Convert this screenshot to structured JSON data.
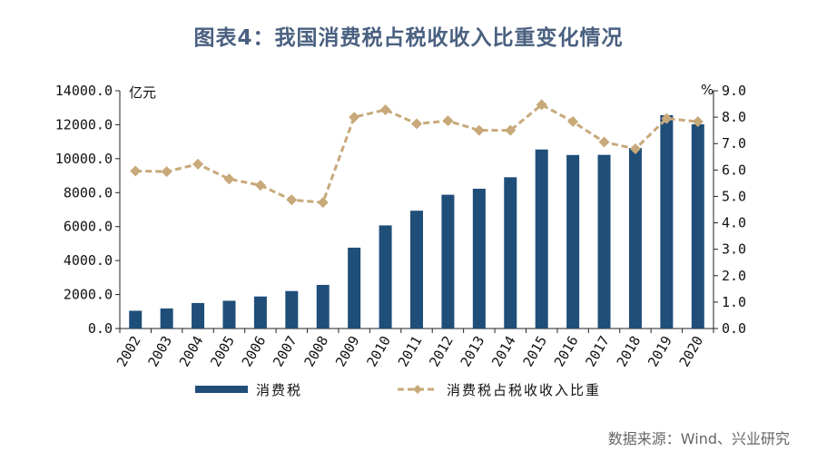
{
  "title": "图表4：我国消费税占税收收入比重变化情况",
  "source": "数据来源：Wind、兴业研究",
  "colors": {
    "bar": "#1f4e79",
    "line": "#c8a97a",
    "title": "#4a6080"
  },
  "chart_data": {
    "type": "bar",
    "categories": [
      "2002",
      "2003",
      "2004",
      "2005",
      "2006",
      "2007",
      "2008",
      "2009",
      "2010",
      "2011",
      "2012",
      "2013",
      "2014",
      "2015",
      "2016",
      "2017",
      "2018",
      "2019",
      "2020"
    ],
    "left_axis": {
      "unit": "亿元",
      "range": [
        0,
        14000
      ],
      "ticks": [
        "0.0",
        "2000.0",
        "4000.0",
        "6000.0",
        "8000.0",
        "10000.0",
        "12000.0",
        "14000.0"
      ]
    },
    "right_axis": {
      "unit": "%",
      "range": [
        0,
        9
      ],
      "ticks": [
        "0.0",
        "1.0",
        "2.0",
        "3.0",
        "4.0",
        "5.0",
        "6.0",
        "7.0",
        "8.0",
        "9.0"
      ]
    },
    "series": [
      {
        "name": "消费税",
        "type": "bar",
        "axis": "left",
        "values": [
          1046,
          1182,
          1502,
          1634,
          1886,
          2207,
          2568,
          4761,
          6072,
          6936,
          7876,
          8231,
          8907,
          10542,
          10217,
          10225,
          10632,
          12562,
          12028
        ]
      },
      {
        "name": "消费税占税收收入比重",
        "type": "line",
        "axis": "right",
        "style": "dashed",
        "values": [
          5.96,
          5.94,
          6.22,
          5.66,
          5.42,
          4.87,
          4.77,
          8.0,
          8.28,
          7.75,
          7.86,
          7.5,
          7.5,
          8.47,
          7.83,
          7.06,
          6.8,
          7.95,
          7.83
        ]
      }
    ],
    "legend": "bottom",
    "grid": false
  }
}
